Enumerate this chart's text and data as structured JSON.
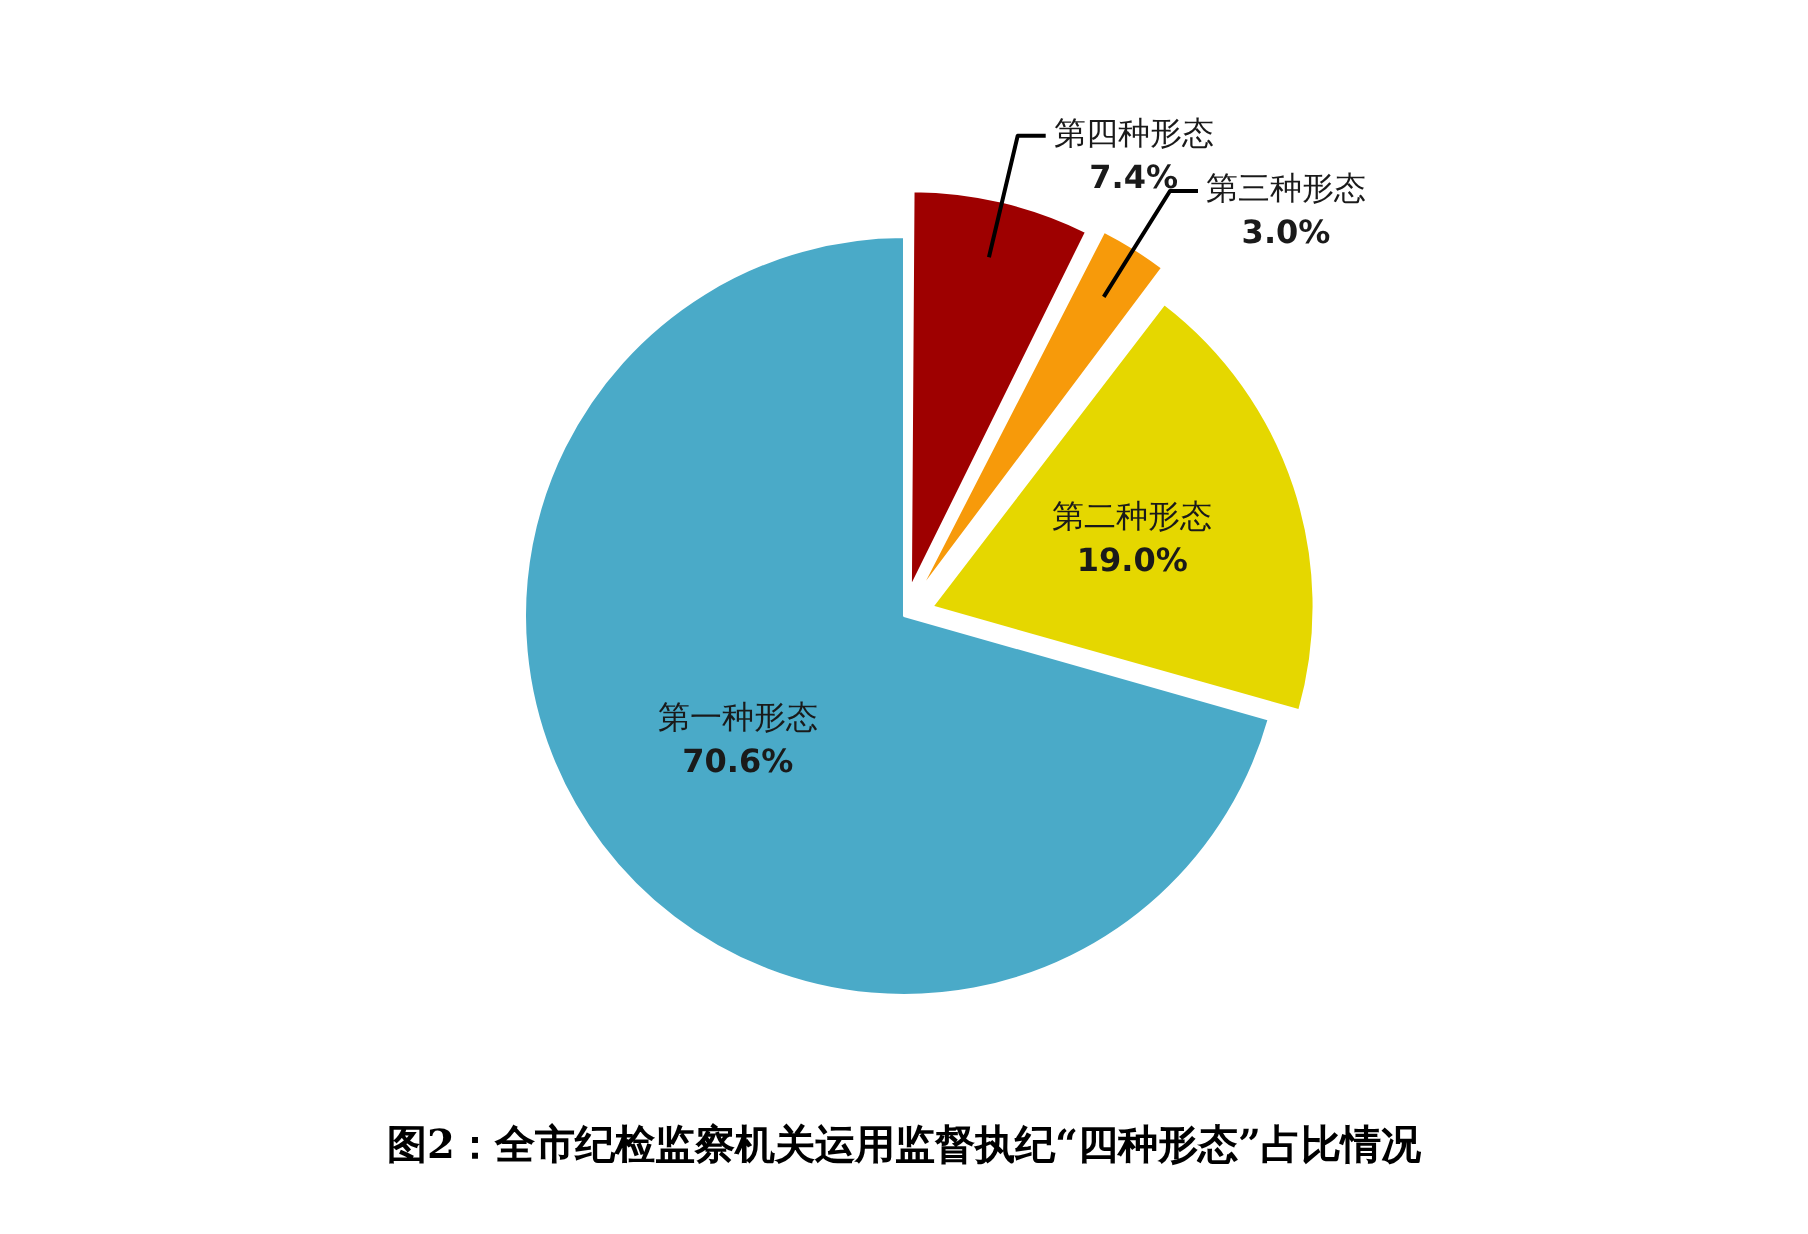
{
  "chart_data": {
    "type": "pie",
    "title": "图2：全市纪检监察机关运用监督执纪“四种形态”占比情况",
    "categories": [
      "第四种形态",
      "第三种形态",
      "第二种形态",
      "第一种形态"
    ],
    "values": [
      7.4,
      3.0,
      19.0,
      70.6
    ],
    "value_labels": [
      "7.4%",
      "3.0%",
      "19.0%",
      "70.6%"
    ],
    "colors": [
      "#9e0000",
      "#f79a0a",
      "#e5d700",
      "#4aaac8"
    ]
  }
}
